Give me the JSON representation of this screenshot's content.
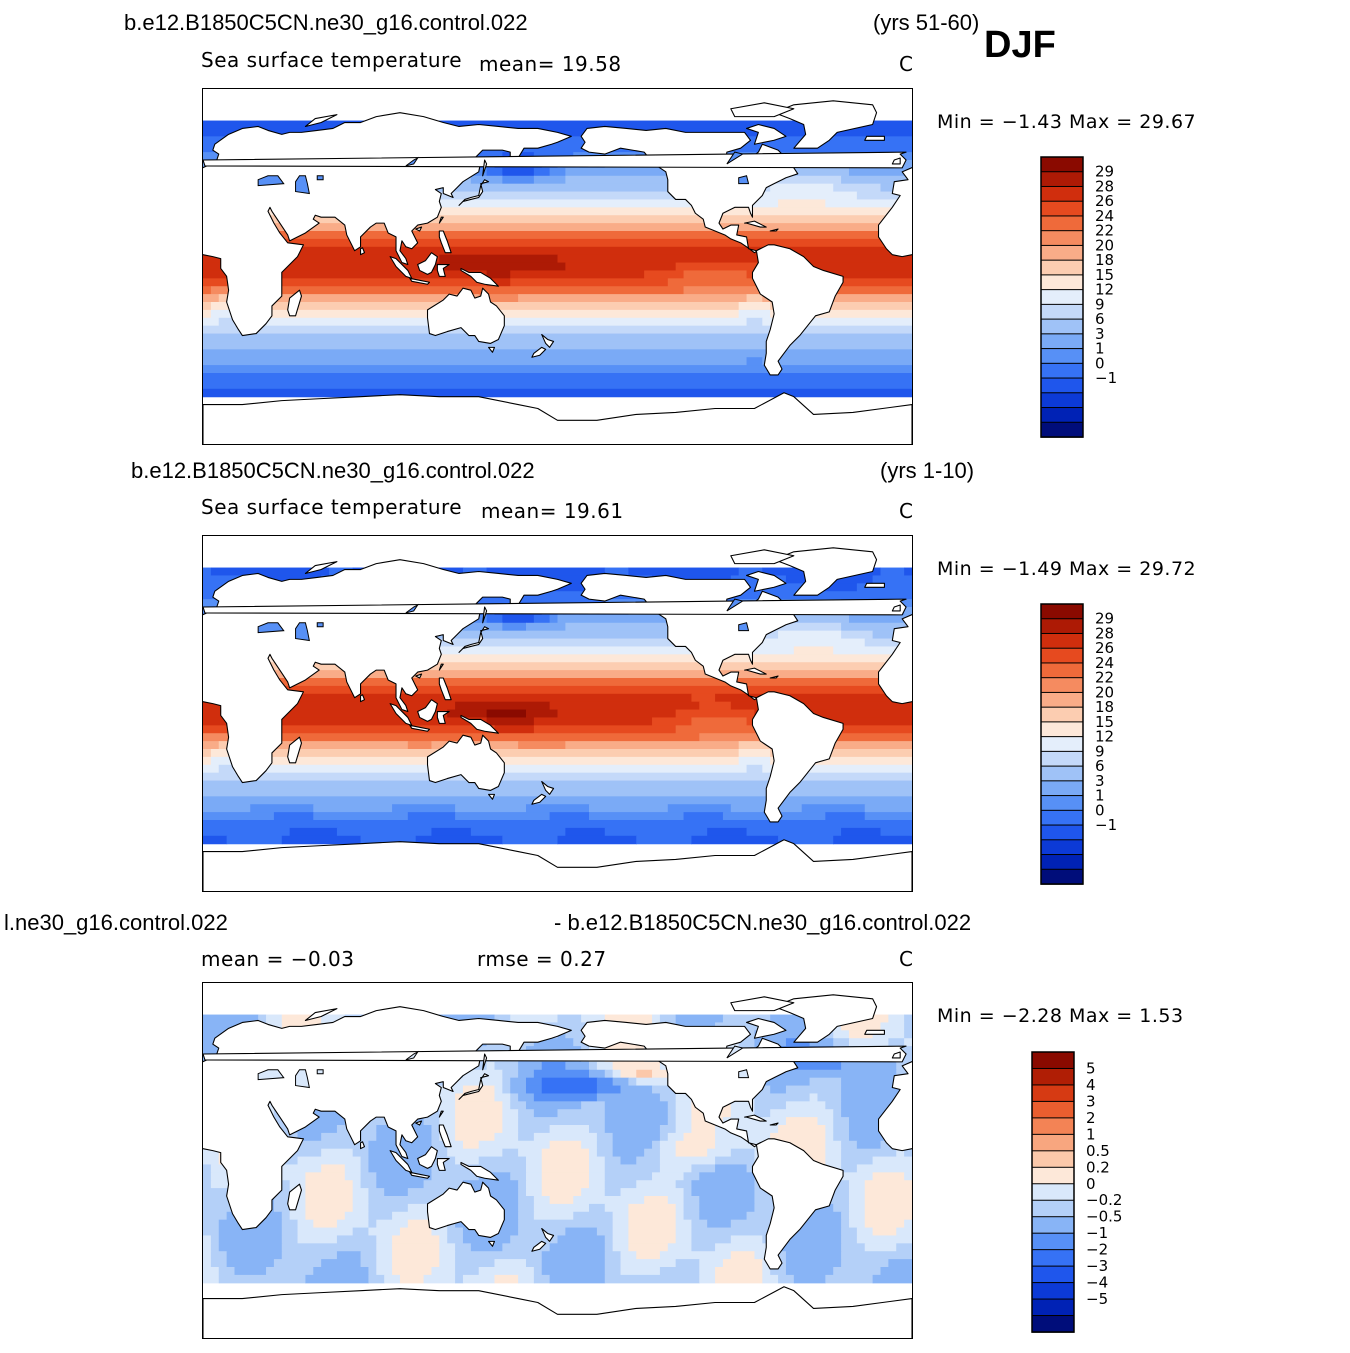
{
  "season": "DJF",
  "palettes": {
    "sst": [
      "#000d7a",
      "#0022b5",
      "#0c3ad6",
      "#1f56ec",
      "#3672f5",
      "#5790f6",
      "#7aaaf6",
      "#9fc2f7",
      "#c4d9f9",
      "#e4eefb",
      "#fde8d9",
      "#fccdb1",
      "#f9ac88",
      "#f58b60",
      "#ef6a3a",
      "#e64a1f",
      "#d02e0d",
      "#ad1a05",
      "#8a0a00"
    ],
    "diff": [
      "#000d7a",
      "#0022b5",
      "#0c3ad6",
      "#1f56ec",
      "#3672f5",
      "#5790f6",
      "#88b4f6",
      "#b4d0f8",
      "#d9e8fb",
      "#fde8d9",
      "#fbc8aa",
      "#f8a67f",
      "#f38355",
      "#ea5e2f",
      "#d63a13",
      "#b01e05",
      "#8a0a00"
    ]
  },
  "panels": [
    {
      "case_left": "b.e12.B1850C5CN.ne30_g16.control.022",
      "case_right": "(yrs 51-60)",
      "variable": "Sea  surface  temperature",
      "mean_text": "mean=   19.58",
      "units": "C",
      "min_text": "Min  =   −1.43  Max  =    29.67",
      "field": "sst",
      "colorbar_labels": [
        "29",
        "28",
        "26",
        "24",
        "22",
        "20",
        "18",
        "15",
        "12",
        "9",
        "6",
        "3",
        "1",
        "0",
        "−1"
      ]
    },
    {
      "case_left": "b.e12.B1850C5CN.ne30_g16.control.022",
      "case_right": "(yrs 1-10)",
      "variable": "Sea  surface  temperature",
      "mean_text": "mean=   19.61",
      "units": "C",
      "min_text": "Min  =   −1.49  Max  =    29.72",
      "field": "sst",
      "colorbar_labels": [
        "29",
        "28",
        "26",
        "24",
        "22",
        "20",
        "18",
        "15",
        "12",
        "9",
        "6",
        "3",
        "1",
        "0",
        "−1"
      ]
    },
    {
      "case_left": "l.ne30_g16.control.022",
      "case_right": "- b.e12.B1850C5CN.ne30_g16.control.022",
      "mean_text": "mean  =    −0.03",
      "rmse_text": "rmse  =     0.27",
      "units": "C",
      "min_text": "Min  =   −2.28  Max  =     1.53",
      "field": "diff",
      "colorbar_labels": [
        "5",
        "4",
        "3",
        "2",
        "1",
        "0.5",
        "0.2",
        "0",
        "−0.2",
        "−0.5",
        "−1",
        "−2",
        "−3",
        "−4",
        "−5"
      ]
    }
  ]
}
